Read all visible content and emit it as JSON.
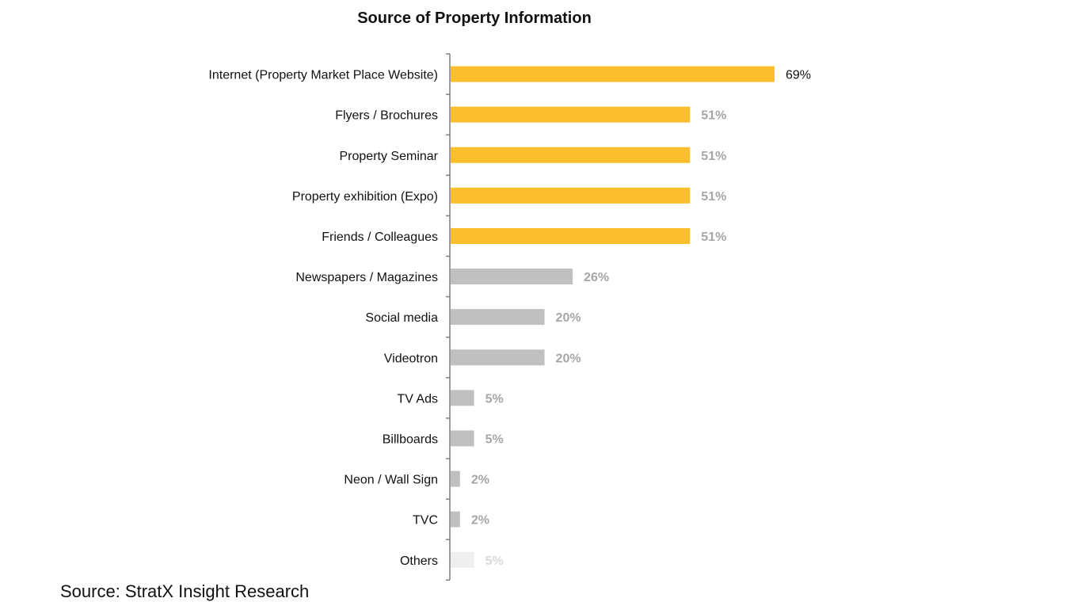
{
  "chart_data": {
    "type": "bar",
    "orientation": "horizontal",
    "title": "Source of Property Information",
    "categories": [
      "Internet (Property Market Place Website)",
      "Flyers / Brochures",
      "Property Seminar",
      "Property exhibition (Expo)",
      "Friends / Colleagues",
      "Newspapers / Magazines",
      "Social media",
      "Videotron",
      "TV Ads",
      "Billboards",
      "Neon / Wall Sign",
      "TVC",
      "Others"
    ],
    "values": [
      69,
      51,
      51,
      51,
      51,
      26,
      20,
      20,
      5,
      5,
      2,
      2,
      5
    ],
    "value_labels": [
      "69%",
      "51%",
      "51%",
      "51%",
      "51%",
      "26%",
      "20%",
      "20%",
      "5%",
      "5%",
      "2%",
      "2%",
      "5%"
    ],
    "bar_colors": [
      "#FBBF2E",
      "#FBBF2E",
      "#FBBF2E",
      "#FBBF2E",
      "#FBBF2E",
      "#C0C0C0",
      "#C0C0C0",
      "#C0C0C0",
      "#C0C0C0",
      "#C0C0C0",
      "#C0C0C0",
      "#C0C0C0",
      "#EFEFEF"
    ],
    "label_colors": [
      "#111111",
      "#A6A6A6",
      "#A6A6A6",
      "#A6A6A6",
      "#A6A6A6",
      "#A6A6A6",
      "#A6A6A6",
      "#A6A6A6",
      "#A6A6A6",
      "#A6A6A6",
      "#A6A6A6",
      "#A6A6A6",
      "#D9D9D9"
    ],
    "xlim": [
      0,
      100
    ],
    "grid": false,
    "legend": "none"
  },
  "source_note": "Source: StratX Insight Research"
}
